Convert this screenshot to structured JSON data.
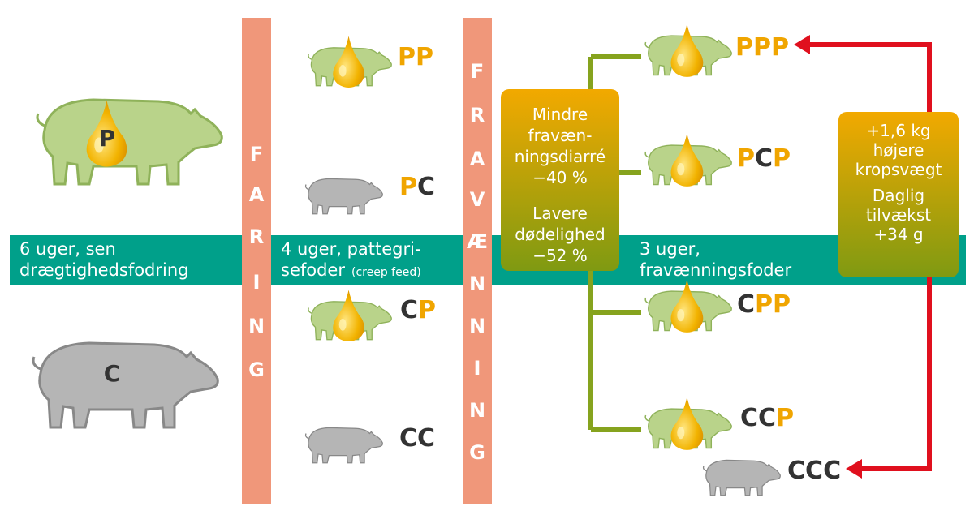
{
  "bands": [
    {
      "lines": [
        "6 uger, sen",
        "drægtighedsfodring"
      ]
    },
    {
      "lines": [
        "4 uger, pattegri-",
        "sefoder"
      ],
      "note": "(creep feed)"
    },
    {
      "lines": [
        "3 uger,",
        "fravænningsfoder"
      ]
    }
  ],
  "dividers": [
    {
      "letters": [
        "F",
        "A",
        "R",
        "I",
        "N",
        "G"
      ]
    },
    {
      "letters": [
        "F",
        "R",
        "A",
        "V",
        "Æ",
        "N",
        "N",
        "I",
        "N",
        "G"
      ]
    }
  ],
  "sows": [
    {
      "label": "P"
    },
    {
      "label": "C"
    }
  ],
  "piglets": [
    {
      "label": [
        "P",
        "P"
      ]
    },
    {
      "label": [
        "P",
        "C"
      ]
    },
    {
      "label": [
        "C",
        "P"
      ]
    },
    {
      "label": [
        "C",
        "C"
      ]
    },
    {
      "label": [
        "P",
        "P",
        "P"
      ]
    },
    {
      "label": [
        "P",
        "C",
        "P"
      ]
    },
    {
      "label": [
        "C",
        "P",
        "P"
      ]
    },
    {
      "label": [
        "C",
        "C",
        "P"
      ]
    },
    {
      "label": [
        "C",
        "C",
        "C"
      ]
    }
  ],
  "boxes": [
    {
      "lines": [
        "Mindre",
        "fravæn-",
        "ningsdiarré",
        "−40 %",
        "Lavere",
        "dødelighed",
        "−52 %"
      ]
    },
    {
      "lines": [
        "+1,6 kg",
        "højere",
        "kropsvægt",
        "Daglig",
        "tilvækst",
        "+34 g"
      ]
    }
  ]
}
